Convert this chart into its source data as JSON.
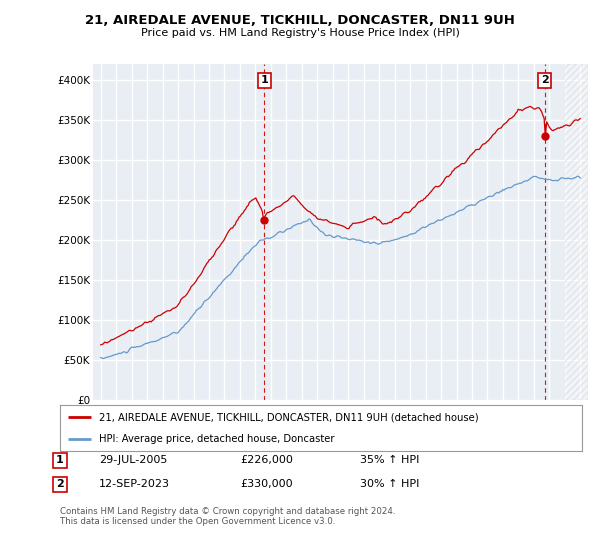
{
  "title": "21, AIREDALE AVENUE, TICKHILL, DONCASTER, DN11 9UH",
  "subtitle": "Price paid vs. HM Land Registry's House Price Index (HPI)",
  "legend_label_red": "21, AIREDALE AVENUE, TICKHILL, DONCASTER, DN11 9UH (detached house)",
  "legend_label_blue": "HPI: Average price, detached house, Doncaster",
  "annotation1_date": "29-JUL-2005",
  "annotation1_price": "£226,000",
  "annotation1_hpi": "35% ↑ HPI",
  "annotation2_date": "12-SEP-2023",
  "annotation2_price": "£330,000",
  "annotation2_hpi": "30% ↑ HPI",
  "footnote": "Contains HM Land Registry data © Crown copyright and database right 2024.\nThis data is licensed under the Open Government Licence v3.0.",
  "ylim": [
    0,
    420000
  ],
  "yticks": [
    0,
    50000,
    100000,
    150000,
    200000,
    250000,
    300000,
    350000,
    400000
  ],
  "ytick_labels": [
    "£0",
    "£50K",
    "£100K",
    "£150K",
    "£200K",
    "£250K",
    "£300K",
    "£350K",
    "£400K"
  ],
  "color_red": "#cc0000",
  "color_blue": "#6699cc",
  "background_color": "#e8eef4",
  "grid_color": "#ffffff",
  "sale1_year": 2005.57,
  "sale1_value": 226000,
  "sale2_year": 2023.71,
  "sale2_value": 330000
}
